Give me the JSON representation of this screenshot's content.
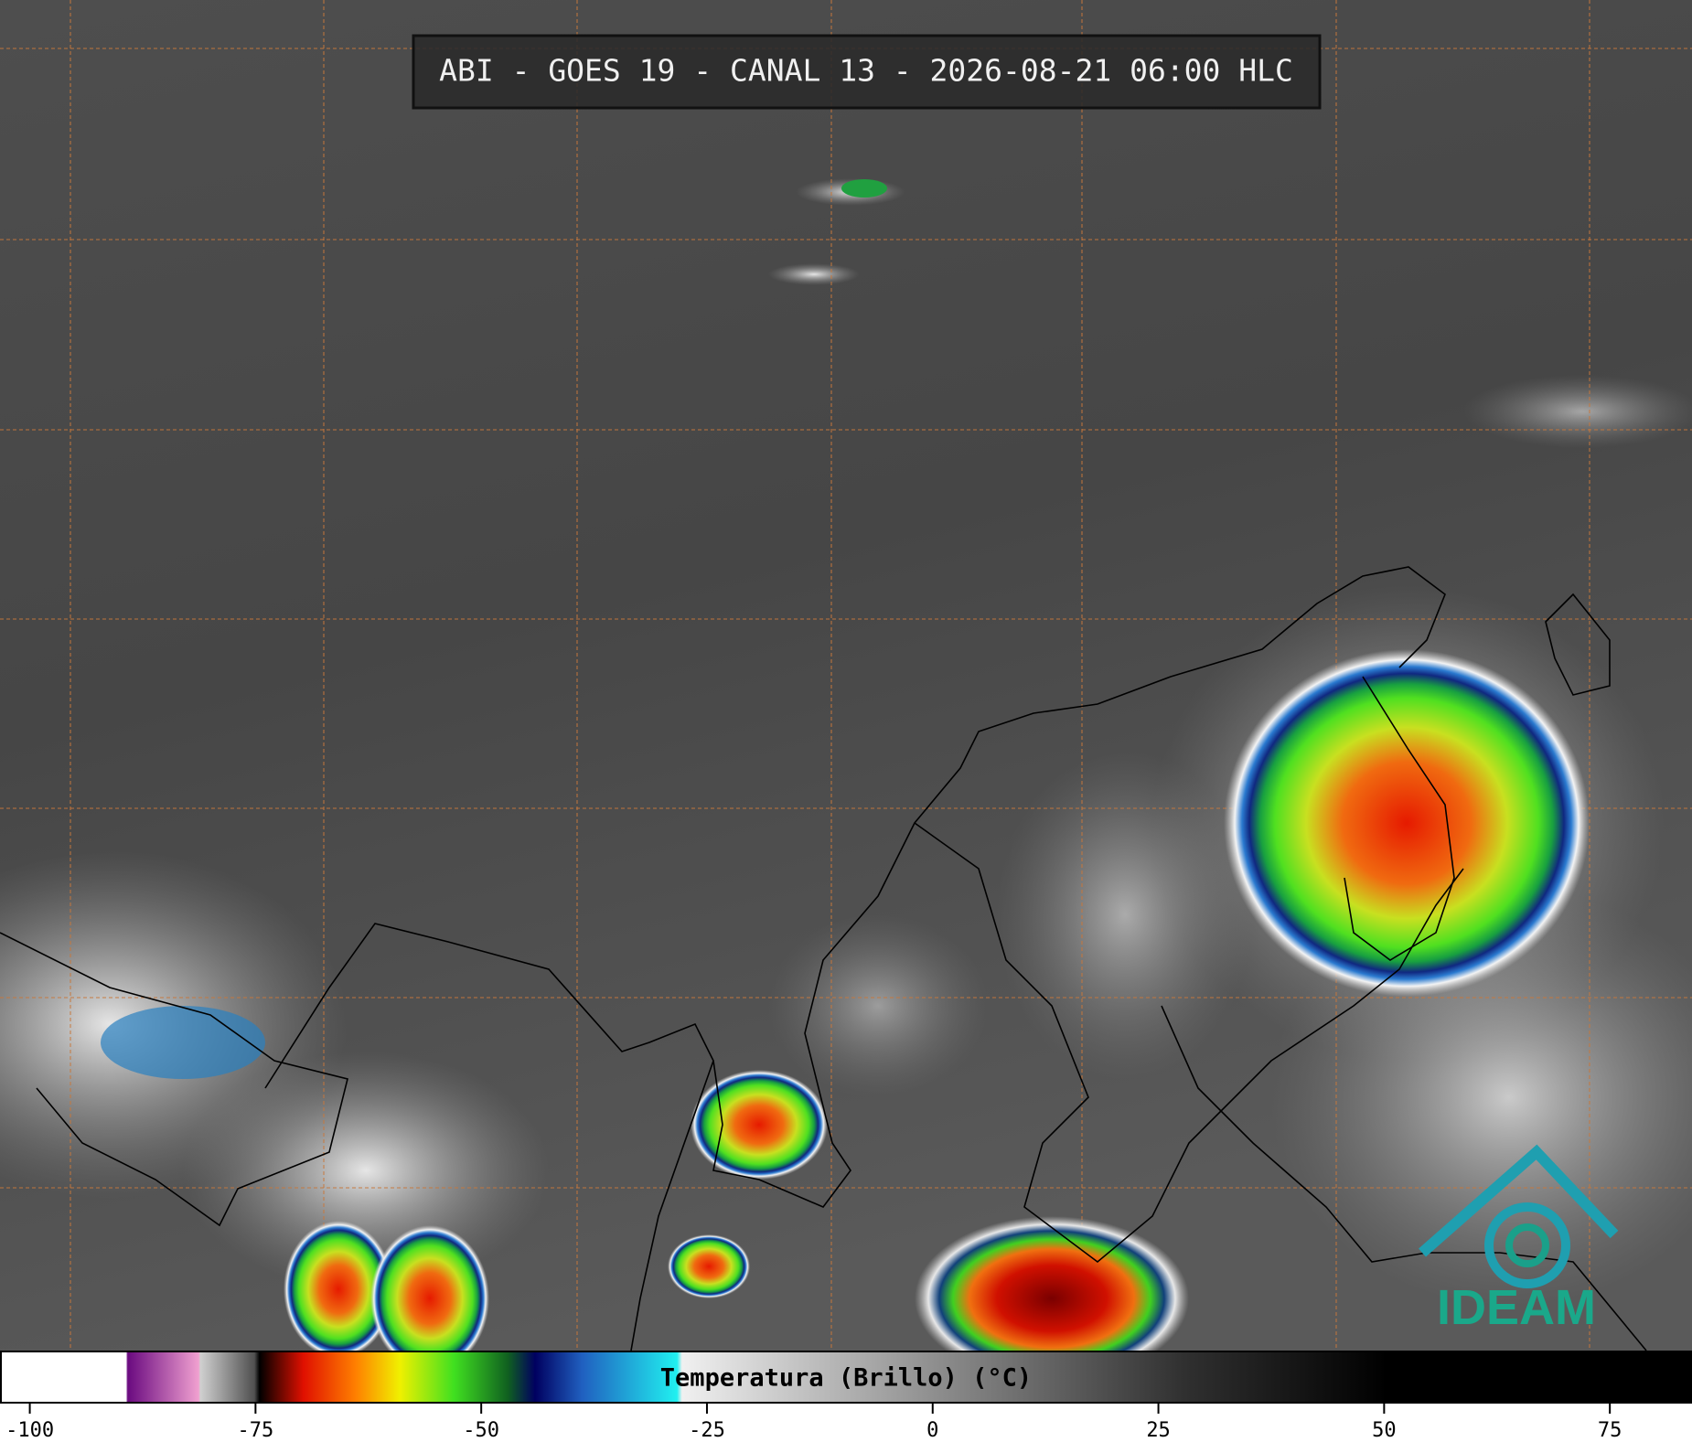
{
  "header": {
    "title": "ABI - GOES 19 - CANAL 13 - 2026-08-21 06:00 HLC"
  },
  "logo": {
    "text": "IDEAM"
  },
  "colorbar": {
    "label": "Temperatura (Brillo) (°C)",
    "xlim": [
      -103.3,
      84.1
    ],
    "xticks": [
      -100,
      -75,
      -50,
      -25,
      0,
      25,
      50,
      75
    ]
  }
}
